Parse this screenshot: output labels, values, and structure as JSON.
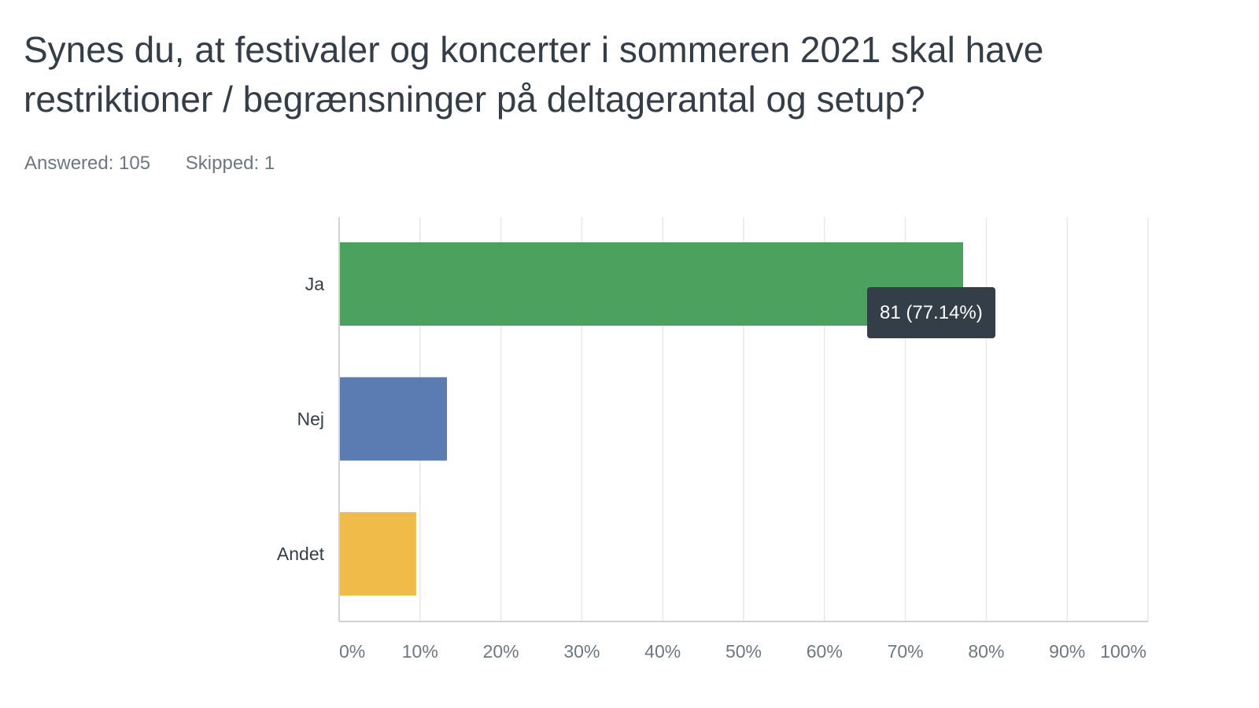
{
  "question": {
    "title": "Synes du, at festivaler og koncerter i sommeren 2021 skal have restriktioner / begrænsninger på deltagerantal og setup?",
    "answered": "Answered: 105",
    "skipped": "Skipped: 1"
  },
  "tooltip": {
    "text": "81 (77.14%)",
    "category": "Ja"
  },
  "chart_data": {
    "type": "bar",
    "orientation": "horizontal",
    "categories": [
      "Ja",
      "Nej",
      "Andet"
    ],
    "values": [
      77.14,
      13.33,
      9.52
    ],
    "counts": [
      81,
      14,
      10
    ],
    "colors": [
      "#4ca15f",
      "#5a7cb3",
      "#f0bb48"
    ],
    "xlim": [
      0,
      100
    ],
    "xticks": [
      "0%",
      "10%",
      "20%",
      "30%",
      "40%",
      "50%",
      "60%",
      "70%",
      "80%",
      "90%",
      "100%"
    ],
    "grid": true,
    "xlabel": "",
    "ylabel": ""
  }
}
